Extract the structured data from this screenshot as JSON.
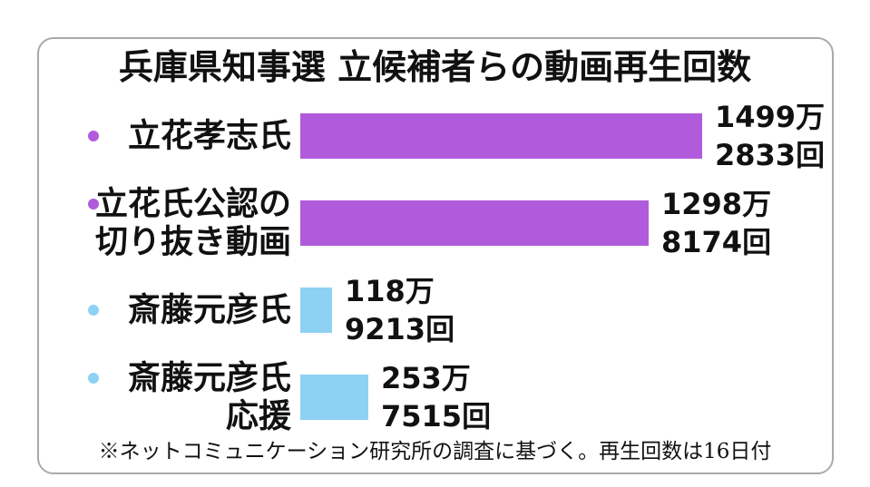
{
  "chart_data": {
    "type": "bar",
    "orientation": "horizontal",
    "title": "兵庫県知事選 立候補者らの動画再生回数",
    "categories": [
      [
        "立花孝志氏"
      ],
      [
        "立花氏公認の",
        "切り抜き動画"
      ],
      [
        "斎藤元彦氏"
      ],
      [
        "斎藤元彦氏",
        "応援"
      ]
    ],
    "values": [
      14992833,
      12988174,
      1189213,
      2537515
    ],
    "value_labels": [
      [
        "1499万",
        "2833回"
      ],
      [
        "1298万",
        "8174回"
      ],
      [
        "118万",
        "9213回"
      ],
      [
        "253万",
        "7515回"
      ]
    ],
    "colors": [
      "#b05bdc",
      "#b05bdc",
      "#8dd1f3",
      "#8dd1f3"
    ],
    "note": "※ネットコミュニケーション研究所の調査に基づく。再生回数は16日付",
    "grid": false,
    "legend": "none"
  }
}
